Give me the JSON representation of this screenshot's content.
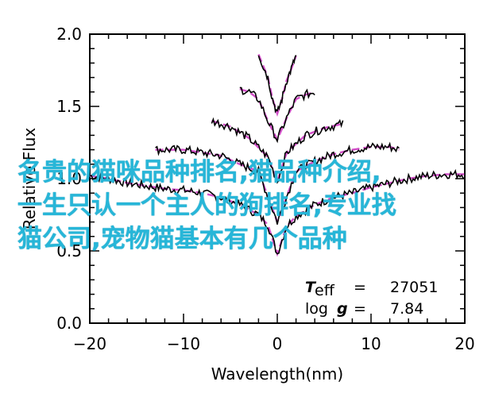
{
  "chart_data": {
    "type": "line",
    "xlabel": "Wavelength(nm)",
    "ylabel": "Relative Flux",
    "xlim": [
      -20,
      20
    ],
    "ylim": [
      0.0,
      2.0
    ],
    "x_ticks": [
      "−20",
      "−10",
      "0",
      "10",
      "20"
    ],
    "y_ticks": [
      "0.0",
      "0.5",
      "1.0",
      "1.5",
      "2.0"
    ],
    "grid": false,
    "series": [
      {
        "name": "",
        "color": "#000000",
        "points": [
          [
            -20,
            1.02
          ],
          [
            -18,
            1.0
          ],
          [
            -16,
            0.97
          ],
          [
            -14,
            0.95
          ],
          [
            -12,
            0.93
          ],
          [
            -10,
            0.92
          ],
          [
            -8,
            0.9
          ],
          [
            -6,
            0.87
          ],
          [
            -4,
            0.82
          ],
          [
            -2,
            0.75
          ],
          [
            -1,
            0.68
          ],
          [
            0,
            0.48
          ],
          [
            1,
            0.67
          ],
          [
            2,
            0.74
          ],
          [
            4,
            0.82
          ],
          [
            6,
            0.87
          ],
          [
            8,
            0.9
          ],
          [
            10,
            0.94
          ],
          [
            12,
            0.97
          ],
          [
            14,
            1.0
          ],
          [
            16,
            1.02
          ],
          [
            18,
            1.03
          ],
          [
            20,
            1.03
          ]
        ]
      },
      {
        "name": "",
        "color": "#000000",
        "points": [
          [
            -13,
            1.2
          ],
          [
            -10,
            1.2
          ],
          [
            -8,
            1.18
          ],
          [
            -6,
            1.16
          ],
          [
            -4,
            1.1
          ],
          [
            -2,
            1.05
          ],
          [
            0,
            0.7
          ],
          [
            2,
            1.05
          ],
          [
            4,
            1.12
          ],
          [
            6,
            1.17
          ],
          [
            8,
            1.2
          ],
          [
            10,
            1.22
          ],
          [
            12,
            1.22
          ],
          [
            13,
            1.2
          ]
        ]
      },
      {
        "name": "",
        "color": "#000000",
        "points": [
          [
            -7,
            1.4
          ],
          [
            -5,
            1.36
          ],
          [
            -3,
            1.28
          ],
          [
            -1,
            1.15
          ],
          [
            0,
            0.98
          ],
          [
            1,
            1.18
          ],
          [
            3,
            1.3
          ],
          [
            5,
            1.35
          ],
          [
            7,
            1.38
          ]
        ]
      },
      {
        "name": "",
        "color": "#000000",
        "points": [
          [
            -4,
            1.62
          ],
          [
            -3,
            1.6
          ],
          [
            -2,
            1.55
          ],
          [
            -1,
            1.4
          ],
          [
            0,
            1.27
          ],
          [
            1,
            1.42
          ],
          [
            2,
            1.55
          ],
          [
            3,
            1.58
          ],
          [
            4,
            1.6
          ]
        ]
      },
      {
        "name": "",
        "color": "#000000",
        "points": [
          [
            -2,
            1.86
          ],
          [
            -1.5,
            1.78
          ],
          [
            -1,
            1.7
          ],
          [
            -0.5,
            1.55
          ],
          [
            0,
            1.45
          ],
          [
            0.5,
            1.55
          ],
          [
            1,
            1.68
          ],
          [
            1.5,
            1.76
          ],
          [
            2,
            1.85
          ]
        ]
      }
    ],
    "fit_color": "#d24fc8",
    "annotation": {
      "teff_label": "T",
      "teff_sub": "eff",
      "teff_eq": "=",
      "teff_value": "27051",
      "logg_label_1": "log",
      "logg_label_2": "g",
      "logg_eq": "=",
      "logg_value": "7.84"
    }
  },
  "overlay_text": [
    "名贵的猫咪品种排名,猫品种介绍,",
    "一生只认一个主人的狗排名,专业找",
    "猫公司,宠物猫基本有几个品种"
  ]
}
